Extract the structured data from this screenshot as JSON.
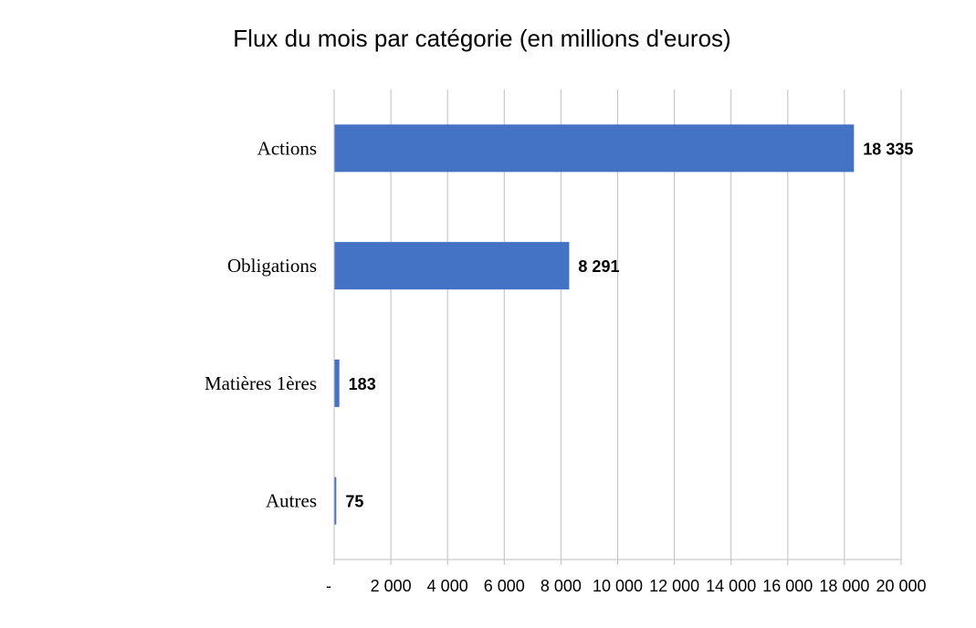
{
  "chart_data": {
    "type": "bar",
    "orientation": "horizontal",
    "title": "Flux du mois par catégorie (en millions d'euros)",
    "categories": [
      "Actions",
      "Obligations",
      "Matières 1ères",
      "Autres"
    ],
    "values": [
      18335,
      8291,
      183,
      75
    ],
    "data_labels": [
      "18 335",
      "8 291",
      "183",
      "75"
    ],
    "xlim": [
      0,
      20000
    ],
    "x_ticks": [
      0,
      2000,
      4000,
      6000,
      8000,
      10000,
      12000,
      14000,
      16000,
      18000,
      20000
    ],
    "x_tick_labels": [
      "-",
      "2 000",
      "4 000",
      "6 000",
      "8 000",
      "10 000",
      "12 000",
      "14 000",
      "16 000",
      "18 000",
      "20 000"
    ],
    "xlabel": "",
    "ylabel": "",
    "grid": "vertical",
    "legend": "none",
    "bar_color": "#4472C4",
    "grid_color": "#BFBFBF"
  }
}
